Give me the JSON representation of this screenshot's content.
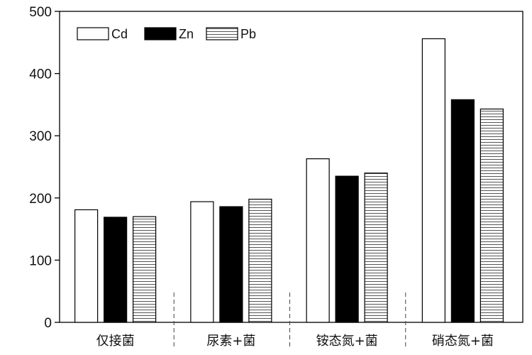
{
  "chart_data": {
    "type": "bar",
    "title": "",
    "xlabel": "",
    "ylabel": "",
    "ylim": [
      0,
      500
    ],
    "yticks": [
      0,
      100,
      200,
      300,
      400,
      500
    ],
    "grid": false,
    "legend_position": "top-left",
    "categories": [
      "仅接菌",
      "尿素+菌",
      "铵态氮+菌",
      "硝态氮+菌"
    ],
    "series": [
      {
        "name": "Cd",
        "fill": "#ffffff",
        "pattern": "none",
        "values": [
          181,
          194,
          263,
          456
        ]
      },
      {
        "name": "Zn",
        "fill": "#000000",
        "pattern": "none",
        "values": [
          169,
          186,
          235,
          358
        ]
      },
      {
        "name": "Pb",
        "fill": "#ffffff",
        "pattern": "horizontal-stripes",
        "values": [
          170,
          198,
          240,
          343
        ]
      }
    ]
  }
}
